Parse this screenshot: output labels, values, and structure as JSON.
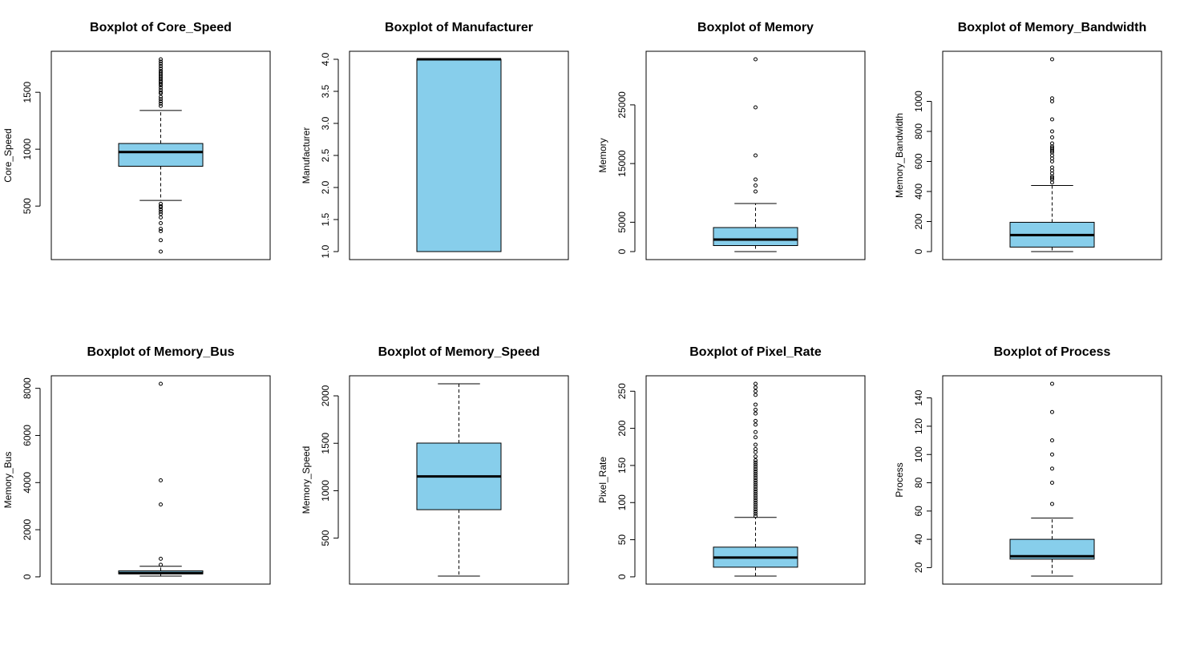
{
  "chart_data": [
    {
      "type": "box",
      "title": "Boxplot of Core_Speed",
      "ylabel": "Core_Speed",
      "ylim": [
        100,
        1790
      ],
      "yticks": [
        500,
        1000,
        1500
      ],
      "box": {
        "q1": 850,
        "median": 975,
        "q3": 1050,
        "whisker_low": 550,
        "whisker_high": 1340
      },
      "outliers": [
        100,
        200,
        280,
        300,
        350,
        400,
        430,
        450,
        470,
        490,
        500,
        520,
        1380,
        1400,
        1420,
        1440,
        1460,
        1490,
        1500,
        1520,
        1540,
        1560,
        1575,
        1590,
        1600,
        1615,
        1630,
        1645,
        1660,
        1675,
        1690,
        1710,
        1730,
        1750,
        1770,
        1790
      ],
      "fill": "#87CEEB"
    },
    {
      "type": "box",
      "title": "Boxplot of Manufacturer",
      "ylabel": "Manufacturer",
      "ylim": [
        1,
        4
      ],
      "yticks": [
        "1.0",
        "1.5",
        "2.0",
        "2.5",
        "3.0",
        "3.5",
        "4.0"
      ],
      "box": {
        "q1": 1,
        "median": 4,
        "q3": 4,
        "whisker_low": 1,
        "whisker_high": 4
      },
      "outliers": [],
      "fill": "#87CEEB"
    },
    {
      "type": "box",
      "title": "Boxplot of Memory",
      "ylabel": "Memory",
      "ylim": [
        0,
        32768
      ],
      "yticks": [
        0,
        5000,
        15000,
        25000
      ],
      "box": {
        "q1": 1024,
        "median": 2048,
        "q3": 4096,
        "whisker_low": 0,
        "whisker_high": 8192
      },
      "outliers": [
        10240,
        11264,
        12288,
        16384,
        24576,
        32768
      ],
      "fill": "#87CEEB"
    },
    {
      "type": "box",
      "title": "Boxplot of Memory_Bandwidth",
      "ylabel": "Memory_Bandwidth",
      "ylim": [
        0,
        1280
      ],
      "yticks": [
        0,
        200,
        400,
        600,
        800,
        1000
      ],
      "box": {
        "q1": 30,
        "median": 110,
        "q3": 195,
        "whisker_low": 0,
        "whisker_high": 440
      },
      "outliers": [
        460,
        480,
        490,
        500,
        520,
        540,
        560,
        600,
        620,
        640,
        660,
        670,
        680,
        690,
        700,
        720,
        760,
        800,
        880,
        1000,
        1020,
        1280
      ],
      "fill": "#87CEEB"
    },
    {
      "type": "box",
      "title": "Boxplot of Memory_Bus",
      "ylabel": "Memory_Bus",
      "ylim": [
        32,
        8192
      ],
      "yticks": [
        0,
        2000,
        4000,
        6000,
        8000
      ],
      "box": {
        "q1": 128,
        "median": 160,
        "q3": 256,
        "whisker_low": 32,
        "whisker_high": 448
      },
      "outliers": [
        512,
        768,
        3072,
        4096,
        8192
      ],
      "fill": "#87CEEB"
    },
    {
      "type": "box",
      "title": "Boxplot of Memory_Speed",
      "ylabel": "Memory_Speed",
      "ylim": [
        100,
        2127
      ],
      "yticks": [
        500,
        1000,
        1500,
        2000
      ],
      "box": {
        "q1": 800,
        "median": 1150,
        "q3": 1502,
        "whisker_low": 100,
        "whisker_high": 2127
      },
      "outliers": [],
      "fill": "#87CEEB"
    },
    {
      "type": "box",
      "title": "Boxplot of Pixel_Rate",
      "ylabel": "Pixel_Rate",
      "ylim": [
        1,
        260
      ],
      "yticks": [
        0,
        50,
        100,
        150,
        200,
        250
      ],
      "box": {
        "q1": 13,
        "median": 26,
        "q3": 40,
        "whisker_low": 1,
        "whisker_high": 80
      },
      "outliers": [
        82,
        85,
        88,
        91,
        94,
        97,
        100,
        103,
        106,
        109,
        112,
        115,
        118,
        121,
        124,
        127,
        130,
        133,
        136,
        139,
        142,
        145,
        148,
        151,
        154,
        157,
        162,
        168,
        172,
        178,
        188,
        195,
        205,
        210,
        220,
        225,
        232,
        245,
        250,
        255,
        260
      ],
      "fill": "#87CEEB"
    },
    {
      "type": "box",
      "title": "Boxplot of Process",
      "ylabel": "Process",
      "ylim": [
        14,
        150
      ],
      "yticks": [
        20,
        40,
        60,
        80,
        100,
        120,
        140
      ],
      "box": {
        "q1": 26,
        "median": 28,
        "q3": 40,
        "whisker_low": 14,
        "whisker_high": 55
      },
      "outliers": [
        65,
        80,
        90,
        100,
        110,
        130,
        150
      ],
      "fill": "#87CEEB"
    }
  ]
}
